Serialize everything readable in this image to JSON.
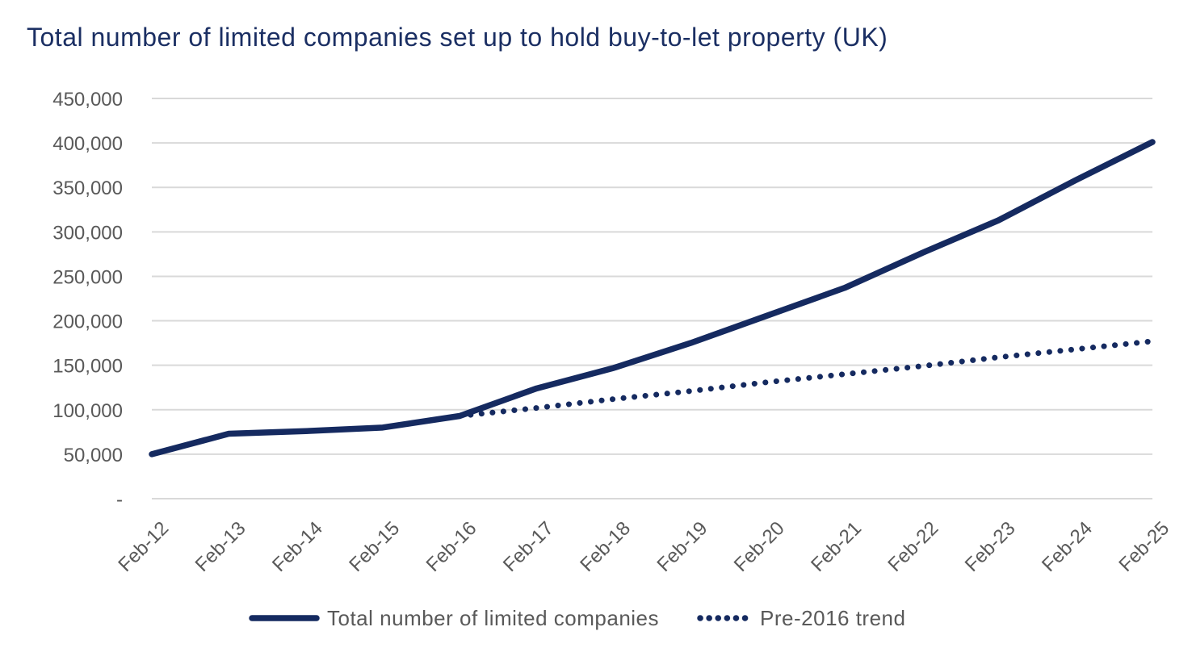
{
  "title": "Total number of limited companies set up to hold buy-to-let property (UK)",
  "colors": {
    "navy": "#152a60",
    "title": "#1b2f63",
    "grid": "#d9d9d9",
    "axis_label": "#595959",
    "legend_text": "#595959",
    "background": "#ffffff"
  },
  "chart_data": {
    "type": "line",
    "title": "Total number of limited companies set up to hold buy-to-let property (UK)",
    "xlabel": "",
    "ylabel": "",
    "grid": "horizontal",
    "legend_position": "bottom",
    "ylim": [
      0,
      450000
    ],
    "ytick_interval": 50000,
    "ytick_labels": [
      "-",
      "50,000",
      "100,000",
      "150,000",
      "200,000",
      "250,000",
      "300,000",
      "350,000",
      "400,000",
      "450,000"
    ],
    "categories": [
      "Feb-12",
      "Feb-13",
      "Feb-14",
      "Feb-15",
      "Feb-16",
      "Feb-17",
      "Feb-18",
      "Feb-19",
      "Feb-20",
      "Feb-21",
      "Feb-22",
      "Feb-23",
      "Feb-24",
      "Feb-25"
    ],
    "series": [
      {
        "name": "Total number of limited companies",
        "style": "solid",
        "values": [
          50000,
          73000,
          76000,
          80000,
          93000,
          124000,
          147000,
          175000,
          206000,
          237000,
          276000,
          313000,
          358000,
          401000
        ]
      },
      {
        "name": "Pre-2016 trend",
        "style": "dotted",
        "values": [
          null,
          null,
          null,
          null,
          93000,
          102000,
          112000,
          121000,
          131000,
          140000,
          149000,
          159000,
          168000,
          177000
        ]
      }
    ]
  },
  "legend": {
    "items": [
      {
        "label": "Total number of limited companies",
        "marker": "solid-line"
      },
      {
        "label": "Pre-2016 trend",
        "marker": "dotted-line"
      }
    ]
  }
}
